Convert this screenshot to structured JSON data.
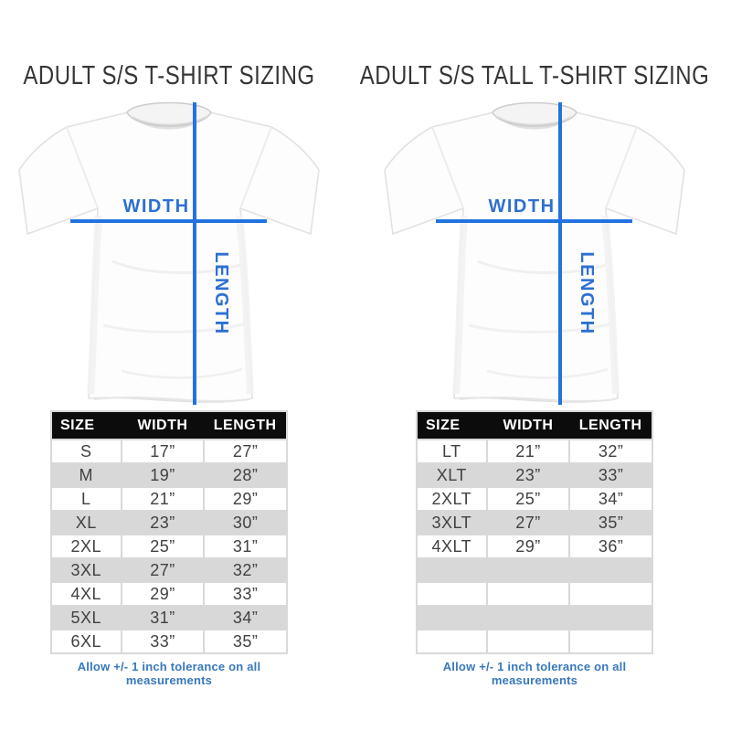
{
  "colors": {
    "measure_line_blue": "#2273e0",
    "label_blue": "#2e6fd2",
    "footnote_blue": "#3878bd",
    "table_header_bg": "#0c0c0c",
    "alt_row_gray": "#d8d8d8"
  },
  "panels": [
    {
      "title": "ADULT S/S T-SHIRT SIZING",
      "diagram": {
        "width_label": "WIDTH",
        "length_label": "LENGTH"
      },
      "table": {
        "headers": [
          "SIZE",
          "WIDTH",
          "LENGTH"
        ],
        "rows": [
          [
            "S",
            "17”",
            "27”"
          ],
          [
            "M",
            "19”",
            "28”"
          ],
          [
            "L",
            "21”",
            "29”"
          ],
          [
            "XL",
            "23”",
            "30”"
          ],
          [
            "2XL",
            "25”",
            "31”"
          ],
          [
            "3XL",
            "27”",
            "32”"
          ],
          [
            "4XL",
            "29”",
            "33”"
          ],
          [
            "5XL",
            "31”",
            "34”"
          ],
          [
            "6XL",
            "33”",
            "35”"
          ]
        ],
        "empty_rows": 0
      },
      "footnote": "Allow +/- 1 inch tolerance on all measurements"
    },
    {
      "title": "ADULT S/S TALL T-SHIRT SIZING",
      "diagram": {
        "width_label": "WIDTH",
        "length_label": "LENGTH"
      },
      "table": {
        "headers": [
          "SIZE",
          "WIDTH",
          "LENGTH"
        ],
        "rows": [
          [
            "LT",
            "21”",
            "32”"
          ],
          [
            "XLT",
            "23”",
            "33”"
          ],
          [
            "2XLT",
            "25”",
            "34”"
          ],
          [
            "3XLT",
            "27”",
            "35”"
          ],
          [
            "4XLT",
            "29”",
            "36”"
          ]
        ],
        "empty_rows": 4
      },
      "footnote": "Allow +/- 1 inch tolerance on all measurements"
    }
  ]
}
